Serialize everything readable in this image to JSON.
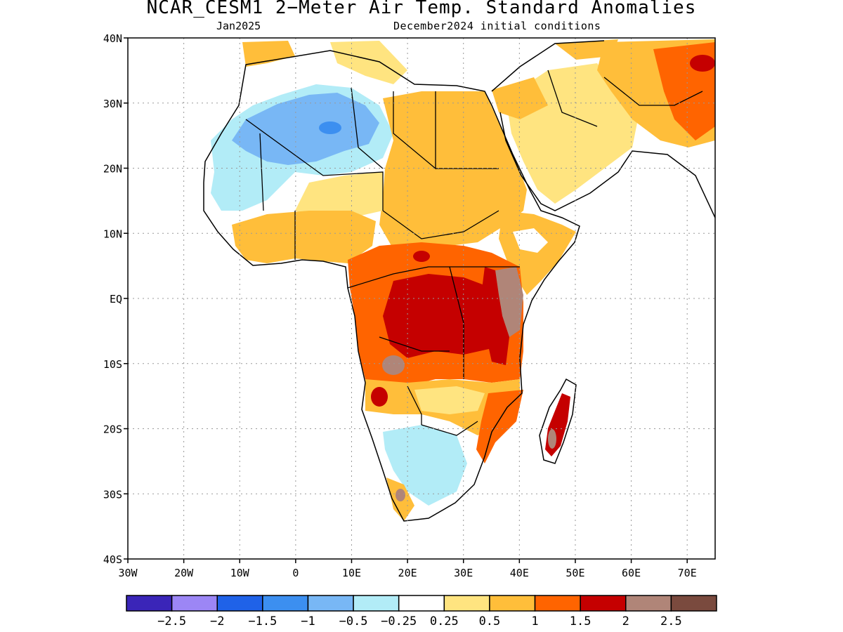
{
  "title": "NCAR_CESM1 2−Meter Air Temp. Standard Anomalies",
  "subtitle_left": "Jan2025",
  "subtitle_right": "December2024 initial conditions",
  "axes": {
    "lat_labels": [
      "40N",
      "30N",
      "20N",
      "10N",
      "EQ",
      "10S",
      "20S",
      "30S",
      "40S"
    ],
    "lon_labels": [
      "30W",
      "20W",
      "10W",
      "0",
      "10E",
      "20E",
      "30E",
      "40E",
      "50E",
      "60E",
      "70E"
    ],
    "lat_range": [
      -40,
      40
    ],
    "lon_range": [
      -30,
      75
    ],
    "grid": "dotted"
  },
  "colorbar": {
    "colors": [
      "#3a25b8",
      "#9c86f5",
      "#1f62e8",
      "#3c8ff0",
      "#78b7f5",
      "#b2ecf7",
      "#ffffff",
      "#ffe480",
      "#ffbe3a",
      "#ff6400",
      "#c50000",
      "#b08578",
      "#7a4a3e"
    ],
    "labels": [
      "−2.5",
      "−2",
      "−1.5",
      "−1",
      "−0.5",
      "−0.25",
      "0.25",
      "0.5",
      "1",
      "1.5",
      "2",
      "2.5"
    ]
  },
  "anomaly_regions": [
    {
      "name": "west-sahara-cold",
      "level": "−0.5",
      "color": "#b2ecf7"
    },
    {
      "name": "central-sahara-cold",
      "level": "−1",
      "color": "#78b7f5"
    },
    {
      "name": "egypt-sudan-warm",
      "level": "1",
      "color": "#ffbe3a"
    },
    {
      "name": "arabia-warm",
      "level": "0.5",
      "color": "#ffe480"
    },
    {
      "name": "iran-warm",
      "level": "1.5",
      "color": "#ff6400"
    },
    {
      "name": "central-africa-warm",
      "level": "1.5",
      "color": "#ff6400"
    },
    {
      "name": "congo-hot",
      "level": "2",
      "color": "#c50000"
    },
    {
      "name": "east-africa-extreme",
      "level": "2.5",
      "color": "#b08578"
    },
    {
      "name": "south-africa-cold",
      "level": "−0.5",
      "color": "#b2ecf7"
    },
    {
      "name": "madagascar-hot",
      "level": "2",
      "color": "#c50000"
    }
  ]
}
